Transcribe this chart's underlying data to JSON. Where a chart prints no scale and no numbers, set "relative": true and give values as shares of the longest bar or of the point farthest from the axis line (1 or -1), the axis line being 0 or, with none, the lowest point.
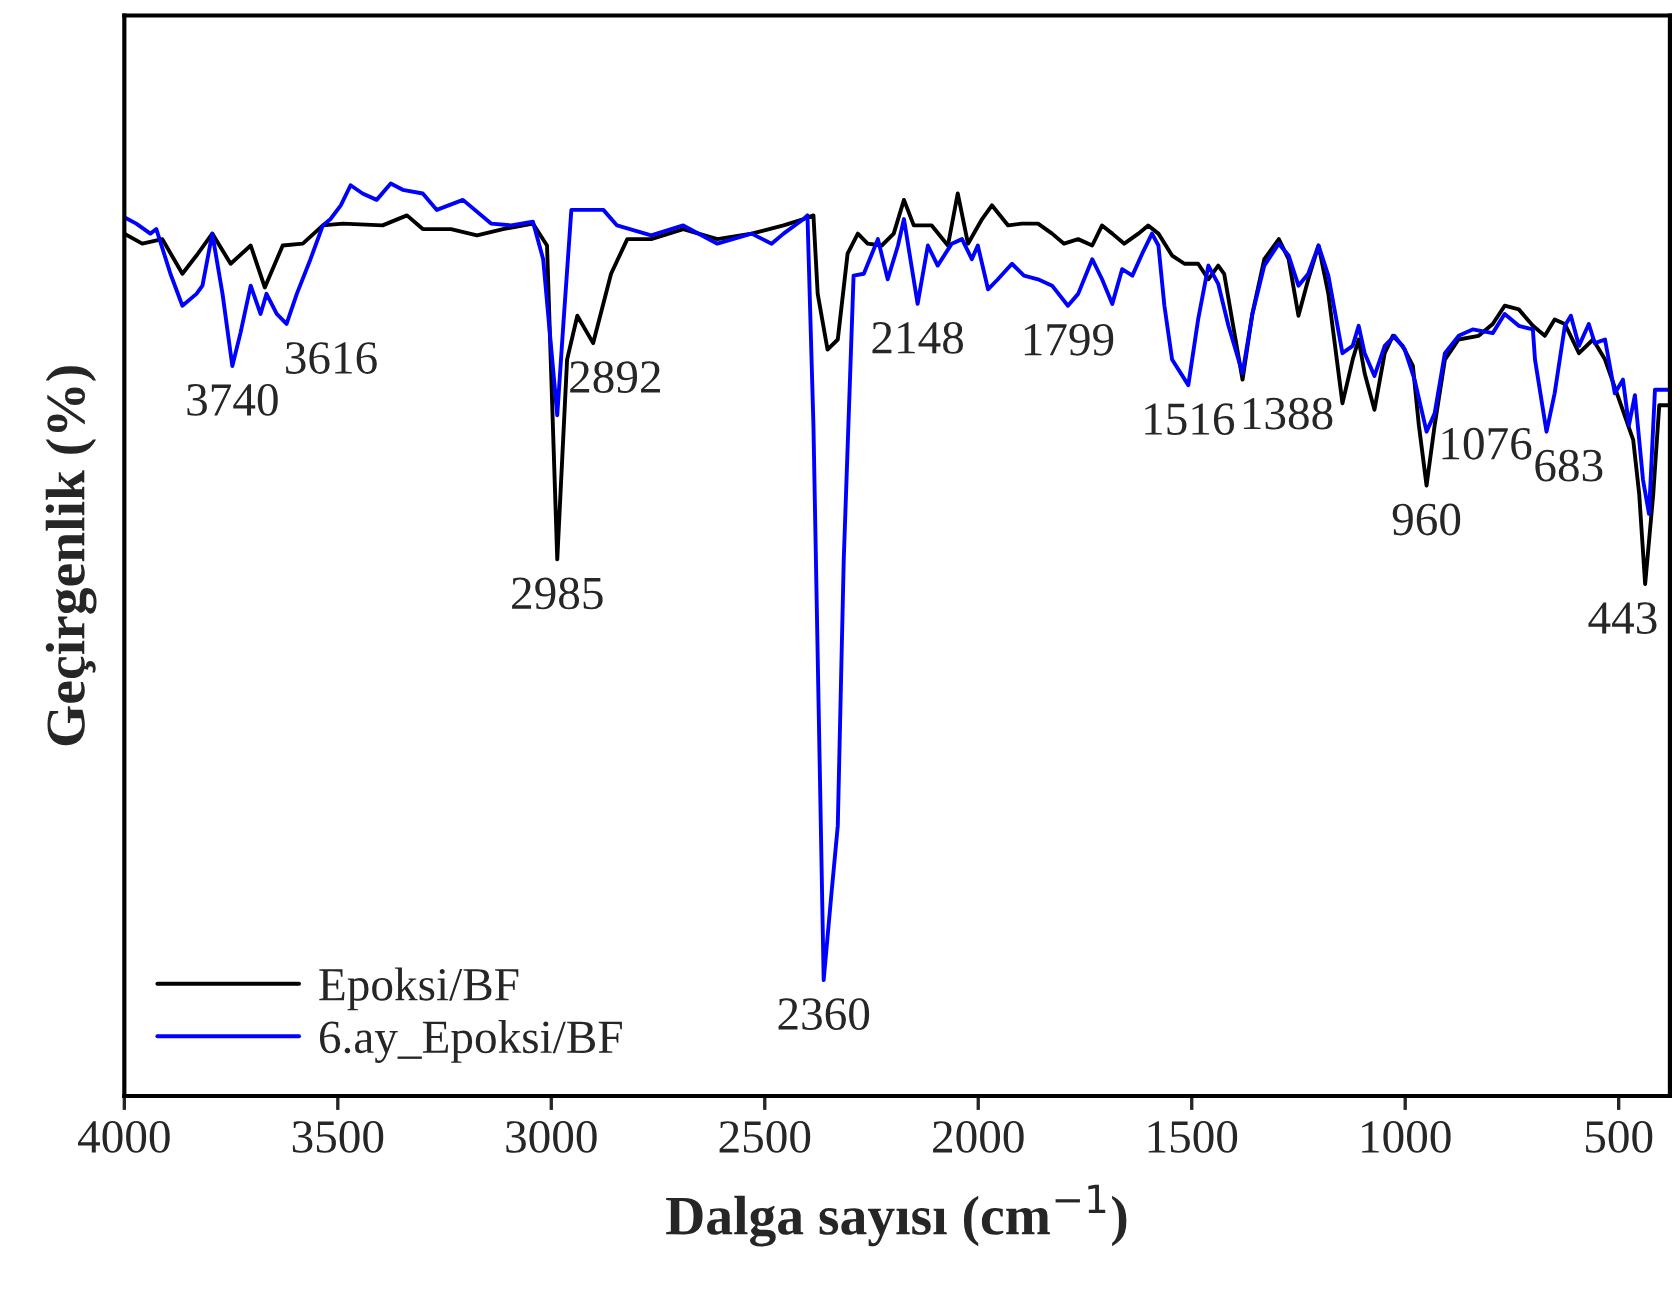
{
  "chart_data": {
    "type": "line",
    "relative": true,
    "xlabel": "Dalga sayısı (cm$^{−1}$)",
    "ylabel": "Geçirgenlik (%)",
    "xlim": [
      4000,
      380
    ],
    "xticks": [
      4000,
      3500,
      3000,
      2500,
      2000,
      1500,
      1000,
      500
    ],
    "grid": false,
    "legend": "bottom left",
    "marker": "none",
    "line_style": "solid",
    "series": [
      {
        "name": "Epoksi/BF",
        "color": "#000000",
        "x": [
          4000,
          3958,
          3911,
          3864,
          3831,
          3794,
          3751,
          3704,
          3671,
          3629,
          3582,
          3535,
          3488,
          3395,
          3338,
          3301,
          3235,
          3174,
          3113,
          3043,
          3010,
          2986,
          2963,
          2939,
          2902,
          2860,
          2822,
          2766,
          2691,
          2611,
          2531,
          2456,
          2409,
          2386,
          2376,
          2353,
          2329,
          2306,
          2282,
          2259,
          2226,
          2198,
          2174,
          2151,
          2109,
          2071,
          2048,
          2024,
          1991,
          1968,
          1930,
          1898,
          1860,
          1827,
          1799,
          1766,
          1733,
          1710,
          1686,
          1658,
          1625,
          1602,
          1578,
          1546,
          1517,
          1485,
          1461,
          1438,
          1424,
          1400,
          1381,
          1358,
          1330,
          1296,
          1273,
          1250,
          1227,
          1203,
          1180,
          1147,
          1123,
          1109,
          1095,
          1072,
          1048,
          1029,
          1006,
          982,
          968,
          950,
          931,
          907,
          875,
          828,
          795,
          767,
          734,
          701,
          673,
          650,
          626,
          593,
          560,
          532,
          499,
          466,
          452,
          438,
          419,
          405,
          382
        ],
        "values": [
          0.945,
          0.934,
          0.939,
          0.901,
          0.921,
          0.945,
          0.912,
          0.932,
          0.886,
          0.932,
          0.934,
          0.954,
          0.956,
          0.954,
          0.965,
          0.95,
          0.95,
          0.943,
          0.95,
          0.956,
          0.932,
          0.588,
          0.807,
          0.855,
          0.825,
          0.901,
          0.939,
          0.939,
          0.95,
          0.939,
          0.945,
          0.954,
          0.961,
          0.965,
          0.879,
          0.818,
          0.829,
          0.923,
          0.945,
          0.934,
          0.932,
          0.945,
          0.982,
          0.954,
          0.954,
          0.932,
          0.989,
          0.934,
          0.961,
          0.976,
          0.954,
          0.956,
          0.956,
          0.945,
          0.934,
          0.939,
          0.932,
          0.954,
          0.945,
          0.934,
          0.945,
          0.954,
          0.945,
          0.921,
          0.912,
          0.912,
          0.895,
          0.91,
          0.901,
          0.836,
          0.785,
          0.857,
          0.917,
          0.939,
          0.917,
          0.855,
          0.895,
          0.932,
          0.879,
          0.759,
          0.807,
          0.829,
          0.792,
          0.752,
          0.814,
          0.833,
          0.822,
          0.8,
          0.735,
          0.669,
          0.735,
          0.807,
          0.829,
          0.833,
          0.846,
          0.866,
          0.862,
          0.844,
          0.833,
          0.851,
          0.846,
          0.814,
          0.829,
          0.807,
          0.763,
          0.719,
          0.66,
          0.561,
          0.66,
          0.757,
          0.757
        ]
      },
      {
        "name": "6.ay_Epoksi/BF",
        "color": "#0000ff",
        "x": [
          4000,
          3972,
          3939,
          3925,
          3892,
          3864,
          3831,
          3817,
          3794,
          3770,
          3747,
          3728,
          3704,
          3681,
          3667,
          3643,
          3620,
          3596,
          3564,
          3535,
          3517,
          3493,
          3470,
          3442,
          3409,
          3376,
          3348,
          3301,
          3268,
          3207,
          3141,
          3094,
          3043,
          3019,
          2986,
          2972,
          2953,
          2878,
          2846,
          2766,
          2691,
          2611,
          2531,
          2484,
          2456,
          2409,
          2400,
          2386,
          2362,
          2344,
          2329,
          2315,
          2292,
          2268,
          2235,
          2212,
          2188,
          2174,
          2142,
          2118,
          2095,
          2062,
          2038,
          2015,
          2001,
          1977,
          1954,
          1921,
          1893,
          1860,
          1827,
          1790,
          1766,
          1733,
          1710,
          1686,
          1663,
          1639,
          1616,
          1593,
          1578,
          1564,
          1546,
          1508,
          1485,
          1461,
          1438,
          1414,
          1381,
          1358,
          1330,
          1296,
          1273,
          1250,
          1227,
          1203,
          1180,
          1147,
          1123,
          1109,
          1095,
          1072,
          1048,
          1025,
          1001,
          978,
          950,
          931,
          907,
          875,
          842,
          795,
          767,
          734,
          701,
          696,
          669,
          650,
          626,
          612,
          593,
          570,
          556,
          532,
          509,
          490,
          476,
          462,
          443,
          429,
          415,
          382
        ],
        "values": [
          0.963,
          0.956,
          0.945,
          0.95,
          0.901,
          0.866,
          0.879,
          0.888,
          0.945,
          0.879,
          0.8,
          0.836,
          0.888,
          0.857,
          0.879,
          0.857,
          0.846,
          0.879,
          0.917,
          0.954,
          0.961,
          0.976,
          0.998,
          0.989,
          0.982,
          1.0,
          0.993,
          0.989,
          0.971,
          0.982,
          0.956,
          0.954,
          0.958,
          0.917,
          0.746,
          0.844,
          0.971,
          0.971,
          0.954,
          0.943,
          0.954,
          0.934,
          0.945,
          0.934,
          0.945,
          0.961,
          0.965,
          0.735,
          0.127,
          0.221,
          0.296,
          0.588,
          0.899,
          0.901,
          0.939,
          0.895,
          0.932,
          0.961,
          0.868,
          0.932,
          0.91,
          0.934,
          0.939,
          0.917,
          0.932,
          0.884,
          0.895,
          0.912,
          0.899,
          0.895,
          0.888,
          0.866,
          0.879,
          0.917,
          0.895,
          0.868,
          0.906,
          0.899,
          0.923,
          0.945,
          0.932,
          0.866,
          0.807,
          0.779,
          0.851,
          0.91,
          0.89,
          0.844,
          0.792,
          0.857,
          0.91,
          0.934,
          0.921,
          0.888,
          0.901,
          0.932,
          0.899,
          0.814,
          0.822,
          0.844,
          0.814,
          0.789,
          0.822,
          0.833,
          0.818,
          0.785,
          0.728,
          0.748,
          0.814,
          0.833,
          0.84,
          0.836,
          0.857,
          0.844,
          0.84,
          0.807,
          0.728,
          0.77,
          0.844,
          0.855,
          0.822,
          0.846,
          0.825,
          0.829,
          0.77,
          0.785,
          0.735,
          0.768,
          0.675,
          0.638,
          0.774,
          0.774
        ]
      }
    ],
    "annotations": [
      {
        "text": "3740",
        "x": 3747,
        "y": 0.8
      },
      {
        "text": "3616",
        "x": 3620,
        "y": 0.846
      },
      {
        "text": "2985",
        "x": 2986,
        "y": 0.588
      },
      {
        "text": "2892",
        "x": 2902,
        "y": 0.825
      },
      {
        "text": "2360",
        "x": 2362,
        "y": 0.127
      },
      {
        "text": "2148",
        "x": 2142,
        "y": 0.868
      },
      {
        "text": "1799",
        "x": 1790,
        "y": 0.866
      },
      {
        "text": "1516",
        "x": 1508,
        "y": 0.779
      },
      {
        "text": "1388",
        "x": 1381,
        "y": 0.785
      },
      {
        "text": "1076",
        "x": 1072,
        "y": 0.752
      },
      {
        "text": "960",
        "x": 950,
        "y": 0.669
      },
      {
        "text": "683",
        "x": 669,
        "y": 0.728
      },
      {
        "text": "443",
        "x": 438,
        "y": 0.561
      }
    ]
  }
}
